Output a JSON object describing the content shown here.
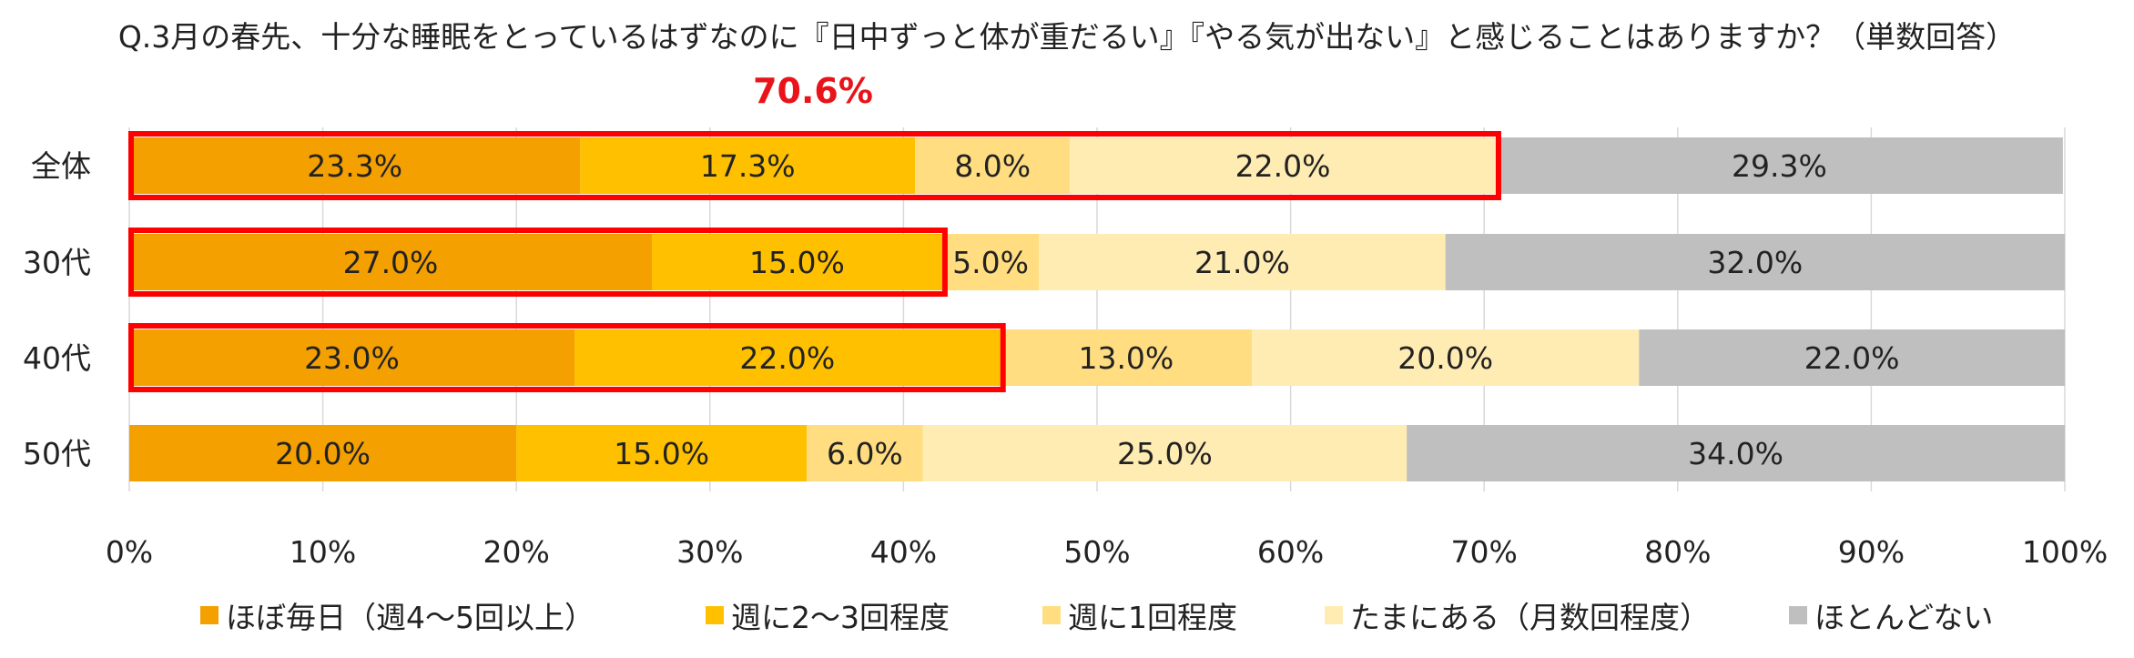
{
  "title": "Q.3月の春先、十分な睡眠をとっているはずなのに『日中ずっと体が重だるい』『やる気が出ない』と感じることはありますか？（単数回答）",
  "chart_data": {
    "type": "bar",
    "orientation": "horizontal",
    "stacked": true,
    "percent_stacked": true,
    "categories": [
      "全体",
      "30代",
      "40代",
      "50代"
    ],
    "series": [
      {
        "name": "ほぼ毎日（週4～5回以上）",
        "color": "#f4a000",
        "values": [
          23.3,
          27.0,
          23.0,
          20.0
        ]
      },
      {
        "name": "週に2～3回程度",
        "color": "#ffc000",
        "values": [
          17.3,
          15.0,
          22.0,
          15.0
        ]
      },
      {
        "name": "週に1回程度",
        "color": "#ffdd80",
        "values": [
          8.0,
          5.0,
          13.0,
          6.0
        ]
      },
      {
        "name": "たまにある（月数回程度）",
        "color": "#ffecb3",
        "values": [
          22.0,
          21.0,
          20.0,
          25.0
        ]
      },
      {
        "name": "ほとんどない",
        "color": "#bfbfbf",
        "values": [
          29.3,
          32.0,
          22.0,
          34.0
        ]
      }
    ],
    "xlim": [
      0,
      100
    ],
    "x_ticks": [
      "0%",
      "10%",
      "20%",
      "30%",
      "40%",
      "50%",
      "60%",
      "70%",
      "80%",
      "90%",
      "100%"
    ],
    "grid": true,
    "legend_position": "bottom",
    "highlights": [
      {
        "category": "全体",
        "through_series_index": 3,
        "color": "#ff0000"
      },
      {
        "category": "30代",
        "through_series_index": 1,
        "color": "#ff0000"
      },
      {
        "category": "40代",
        "through_series_index": 1,
        "color": "#ff0000"
      }
    ],
    "callout": {
      "text": "70.6%",
      "color": "#e8141a"
    }
  }
}
